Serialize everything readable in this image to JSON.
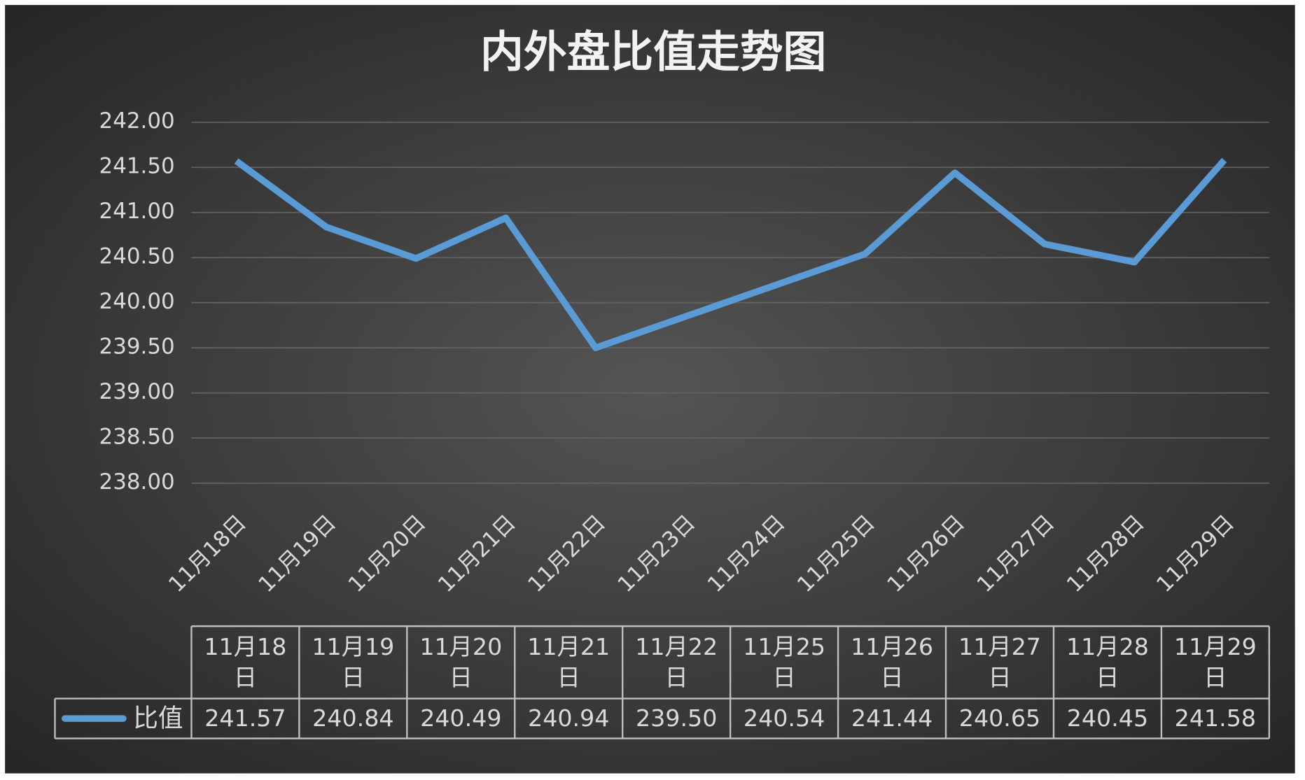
{
  "chart_data": {
    "type": "line",
    "title": "内外盘比值走势图",
    "categories": [
      "11月18日",
      "11月19日",
      "11月20日",
      "11月21日",
      "11月22日",
      "11月23日",
      "11月24日",
      "11月25日",
      "11月26日",
      "11月27日",
      "11月28日",
      "11月29日"
    ],
    "x": [
      "11月18日",
      "11月19日",
      "11月20日",
      "11月21日",
      "11月22日",
      "11月25日",
      "11月26日",
      "11月27日",
      "11月28日",
      "11月29日"
    ],
    "series": [
      {
        "name": "比值",
        "color": "#5b9bd5",
        "values": [
          241.57,
          240.84,
          240.49,
          240.94,
          239.5,
          240.54,
          241.44,
          240.65,
          240.45,
          241.58
        ],
        "value_labels": [
          "241.57",
          "240.84",
          "240.49",
          "240.94",
          "239.50",
          "240.54",
          "241.44",
          "240.65",
          "240.45",
          "241.58"
        ]
      }
    ],
    "ylim": [
      238,
      242
    ],
    "yticks": [
      {
        "value": 238,
        "label": "238.00"
      },
      {
        "value": 238.5,
        "label": "238.50"
      },
      {
        "value": 239,
        "label": "239.00"
      },
      {
        "value": 239.5,
        "label": "239.50"
      },
      {
        "value": 240,
        "label": "240.00"
      },
      {
        "value": 240.5,
        "label": "240.50"
      },
      {
        "value": 241,
        "label": "241.00"
      },
      {
        "value": 241.5,
        "label": "241.50"
      },
      {
        "value": 242,
        "label": "242.00"
      }
    ],
    "grid": true,
    "data_table": true
  }
}
